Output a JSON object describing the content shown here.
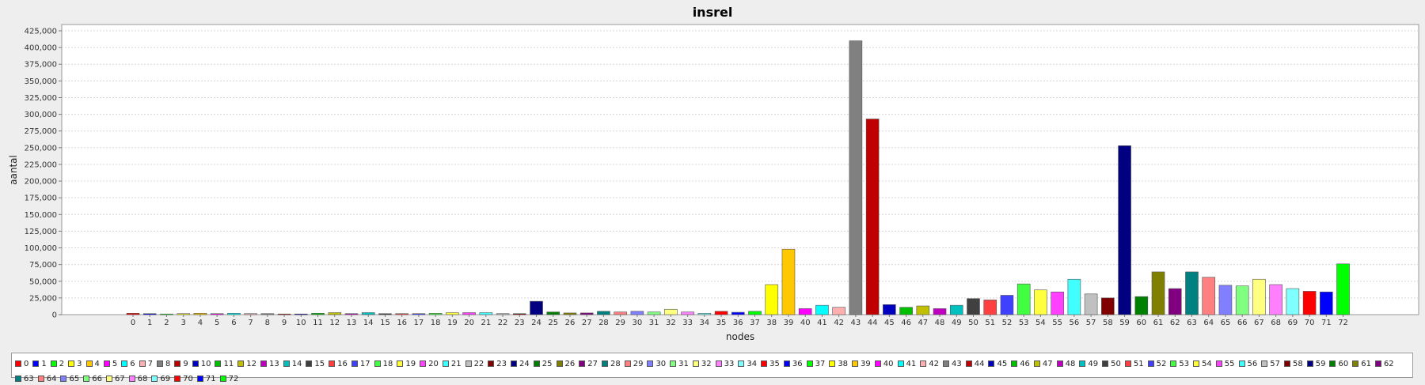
{
  "chart_data": {
    "type": "bar",
    "title": "insrel",
    "xlabel": "nodes",
    "ylabel": "aantal",
    "ylim": [
      0,
      425000
    ],
    "y_ticks": [
      "0",
      "25,000",
      "50,000",
      "75,000",
      "100,000",
      "125,000",
      "150,000",
      "175,000",
      "200,000",
      "225,000",
      "250,000",
      "275,000",
      "300,000",
      "325,000",
      "350,000",
      "375,000",
      "400,000",
      "425,000"
    ],
    "y_tick_values": [
      0,
      25000,
      50000,
      75000,
      100000,
      125000,
      150000,
      175000,
      200000,
      225000,
      250000,
      275000,
      300000,
      325000,
      350000,
      375000,
      400000,
      425000
    ],
    "grid": true,
    "legend_placement": "bottom",
    "categories": [
      "0",
      "1",
      "2",
      "3",
      "4",
      "5",
      "6",
      "7",
      "8",
      "9",
      "10",
      "11",
      "12",
      "13",
      "14",
      "15",
      "16",
      "17",
      "18",
      "19",
      "20",
      "21",
      "22",
      "23",
      "24",
      "25",
      "26",
      "27",
      "28",
      "29",
      "30",
      "31",
      "32",
      "33",
      "34",
      "35",
      "36",
      "37",
      "38",
      "39",
      "40",
      "41",
      "42",
      "43",
      "44",
      "45",
      "46",
      "47",
      "48",
      "49",
      "50",
      "51",
      "52",
      "53",
      "54",
      "55",
      "56",
      "57",
      "58",
      "59",
      "60",
      "61",
      "62",
      "63",
      "64",
      "65",
      "66",
      "67",
      "68",
      "69",
      "70",
      "71",
      "72"
    ],
    "values": [
      2000,
      1500,
      1000,
      1500,
      2000,
      1500,
      2000,
      1500,
      1500,
      1000,
      1000,
      2000,
      3000,
      1500,
      3000,
      1500,
      1500,
      1500,
      2000,
      3000,
      3000,
      3000,
      1500,
      1500,
      20000,
      4000,
      2500,
      2500,
      5000,
      4000,
      5000,
      4000,
      8000,
      4000,
      2000,
      5000,
      3500,
      5000,
      45000,
      98000,
      9000,
      14000,
      11000,
      410000,
      293000,
      15000,
      11000,
      13000,
      9000,
      14000,
      24000,
      22000,
      29000,
      46000,
      37000,
      34000,
      53000,
      31000,
      25000,
      253000,
      27000,
      64000,
      39000,
      64000,
      56000,
      44000,
      43000,
      53000,
      45000,
      39000,
      35000,
      34000,
      76000
    ],
    "colors": [
      "#ff0000",
      "#0000ff",
      "#00ff00",
      "#ffff00",
      "#ffc800",
      "#ff00ff",
      "#00ffff",
      "#ffafaf",
      "#808080",
      "#c00000",
      "#0000c0",
      "#00c000",
      "#c0c000",
      "#c000c0",
      "#00c0c0",
      "#404040",
      "#ff4040",
      "#4040ff",
      "#40ff40",
      "#ffff40",
      "#ff40ff",
      "#40ffff",
      "#c0c0c0",
      "#800000",
      "#000080",
      "#008000",
      "#808000",
      "#800080",
      "#008080",
      "#ff8080",
      "#8080ff",
      "#80ff80",
      "#ffff80",
      "#ff80ff",
      "#80ffff",
      "#ff0000",
      "#0000ff",
      "#00ff00",
      "#ffff00",
      "#ffc800",
      "#ff00ff",
      "#00ffff",
      "#ffafaf",
      "#808080",
      "#c00000",
      "#0000c0",
      "#00c000",
      "#c0c000",
      "#c000c0",
      "#00c0c0",
      "#404040",
      "#ff4040",
      "#4040ff",
      "#40ff40",
      "#ffff40",
      "#ff40ff",
      "#40ffff",
      "#c0c0c0",
      "#800000",
      "#000080",
      "#008000",
      "#808000",
      "#800080",
      "#008080",
      "#ff8080",
      "#8080ff",
      "#80ff80",
      "#ffff80",
      "#ff80ff",
      "#80ffff",
      "#ff0000",
      "#0000ff",
      "#00ff00"
    ]
  }
}
